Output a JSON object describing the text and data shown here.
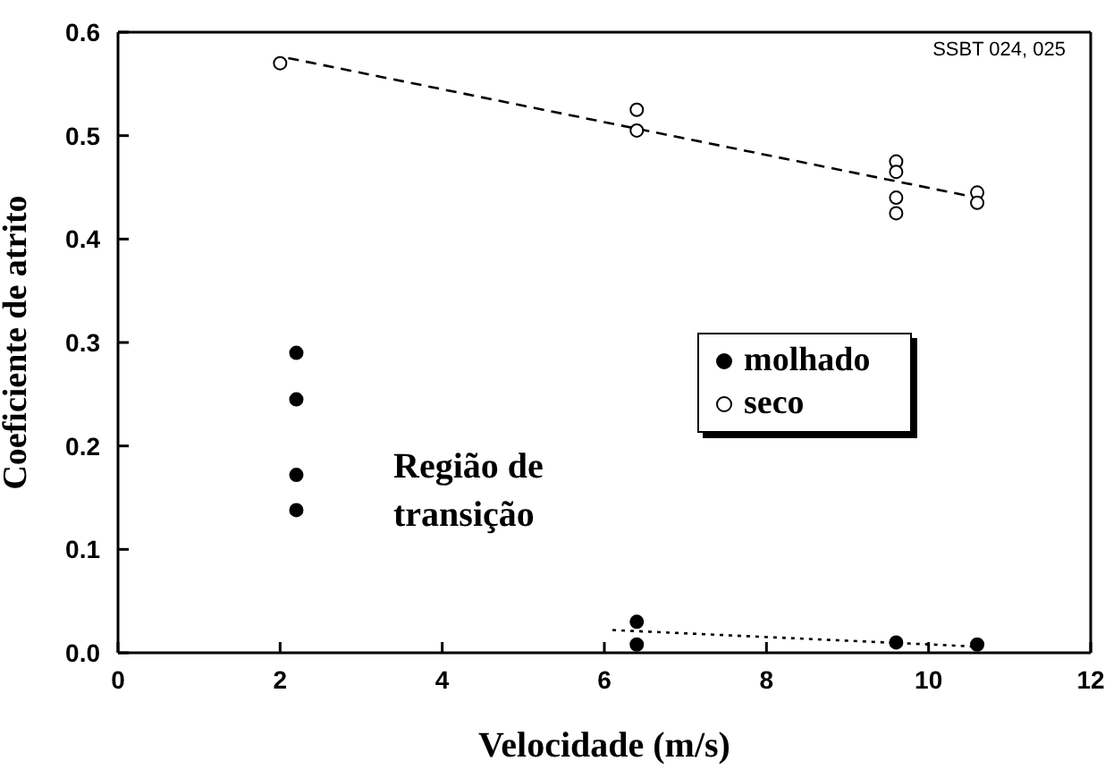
{
  "chart_data": {
    "type": "scatter",
    "xlabel": "Velocidade (m/s)",
    "ylabel": "Coeficiente de atrito",
    "xlim": [
      0,
      12
    ],
    "xticks": [
      0,
      2,
      4,
      6,
      8,
      10,
      12
    ],
    "ylim": [
      0,
      0.6
    ],
    "yticks": [
      {
        "value": 0,
        "label": "0.0"
      },
      0.1,
      0.2,
      0.3,
      0.4,
      0.5,
      0.6
    ],
    "legend": "right",
    "series": [
      {
        "name": "molhado",
        "marker": "circle",
        "color": "#000000",
        "x": [
          2.2,
          2.2,
          2.2,
          2.2,
          6.4,
          6.4,
          9.6,
          10.6
        ],
        "values": [
          0.29,
          0.245,
          0.172,
          0.138,
          0.03,
          0.008,
          0.01,
          0.008
        ]
      },
      {
        "name": "seco",
        "marker": "circle",
        "color": "#ffffff",
        "x": [
          2.0,
          6.4,
          6.4,
          9.6,
          9.6,
          9.6,
          9.6,
          10.6,
          10.6
        ],
        "values": [
          0.57,
          0.525,
          0.505,
          0.475,
          0.465,
          0.44,
          0.425,
          0.445,
          0.435
        ]
      },
      {
        "type": "line",
        "color": "#000000",
        "line_style": "dashed",
        "x": [
          2.1,
          10.6
        ],
        "values": [
          0.575,
          0.44
        ]
      },
      {
        "type": "line",
        "color": "#000000",
        "line_style": "dotted",
        "x": [
          6.1,
          10.6
        ],
        "values": [
          0.022,
          0.006
        ]
      }
    ],
    "annotations": [
      "SSBT 024, 025",
      "Região de transição"
    ]
  }
}
